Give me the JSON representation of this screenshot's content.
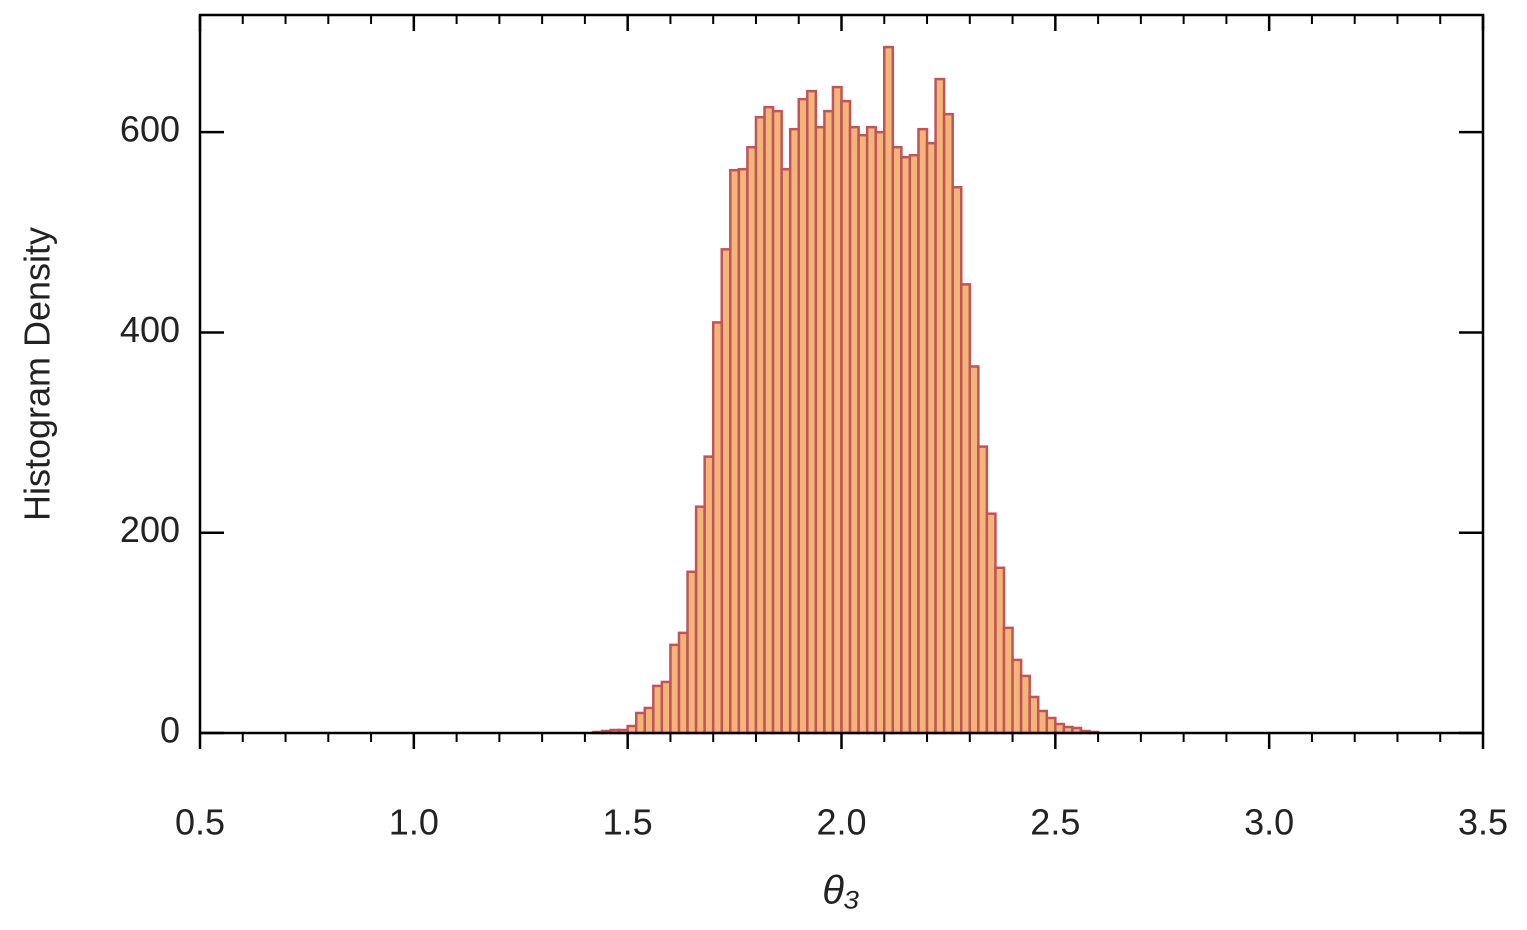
{
  "chart_data": {
    "type": "histogram",
    "xlabel": "θ₃",
    "ylabel": "Histogram Density",
    "color": "#f4b678",
    "edgecolor": "#c0545a",
    "bins": [
      1.42,
      1.44,
      1.46,
      1.48,
      1.5,
      1.52,
      1.54,
      1.56,
      1.58,
      1.6,
      1.62,
      1.64,
      1.66,
      1.68,
      1.7,
      1.72,
      1.74,
      1.76,
      1.78,
      1.8,
      1.82,
      1.84,
      1.86,
      1.88,
      1.9,
      1.92,
      1.94,
      1.96,
      1.98,
      2.0,
      2.02,
      2.04,
      2.06,
      2.08,
      2.1,
      2.12,
      2.14,
      2.16,
      2.18,
      2.2,
      2.22,
      2.24,
      2.26,
      2.28,
      2.3,
      2.32,
      2.34,
      2.36,
      2.38,
      2.4,
      2.42,
      2.44,
      2.46,
      2.48,
      2.5,
      2.52,
      2.54,
      2.56,
      2.58,
      2.6
    ],
    "values": [
      1,
      2,
      3,
      3,
      7,
      20,
      25,
      47,
      51,
      88,
      100,
      161,
      226,
      276,
      410,
      483,
      562,
      563,
      585,
      615,
      625,
      621,
      563,
      603,
      633,
      641,
      605,
      621,
      645,
      631,
      605,
      597,
      605,
      600,
      685,
      585,
      575,
      577,
      603,
      589,
      653,
      618,
      545,
      448,
      366,
      286,
      219,
      165,
      105,
      73,
      57,
      36,
      22,
      15,
      9,
      6,
      5,
      2,
      1
    ],
    "xlim": [
      0.5,
      3.5
    ],
    "xticks": [
      0.5,
      {
        "value": 1,
        "label": "1.0"
      },
      1.5,
      {
        "value": 2,
        "label": "2.0"
      },
      2.5,
      {
        "value": 3,
        "label": "3.0"
      },
      3.5
    ],
    "xminorticks": [
      0.6,
      0.7,
      0.8,
      0.9,
      1.1,
      1.2,
      1.3,
      1.4,
      1.6,
      1.7,
      1.8,
      1.9,
      2.1,
      2.2,
      2.3,
      2.4,
      2.6,
      2.7,
      2.8,
      2.9,
      3.1,
      3.2,
      3.3,
      3.4
    ],
    "ylim": [
      0,
      717
    ],
    "yticks": [
      0,
      200,
      400,
      600
    ]
  }
}
